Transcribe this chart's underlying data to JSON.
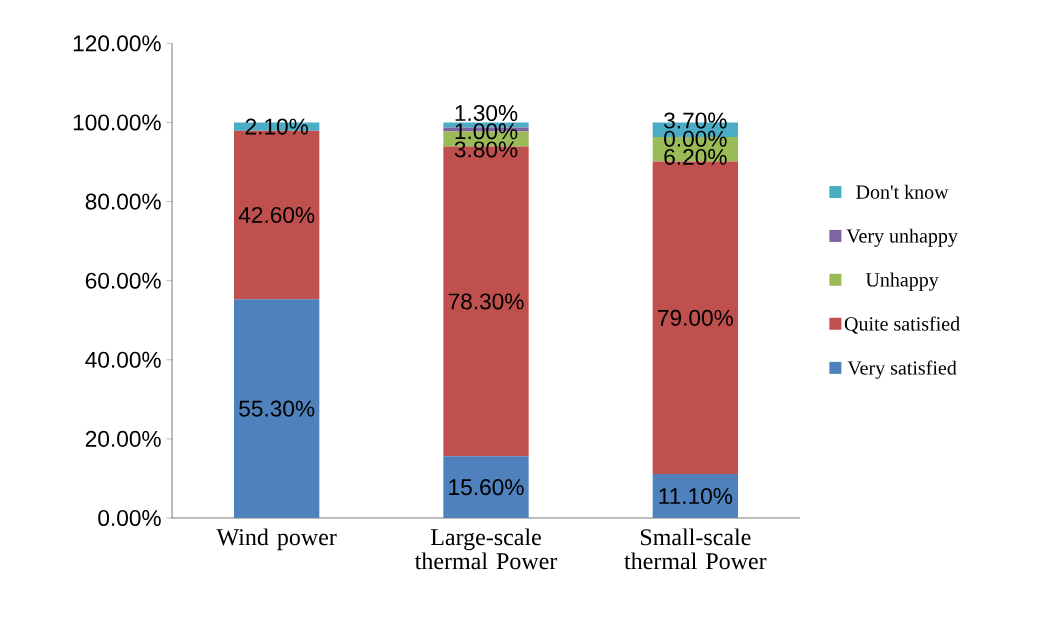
{
  "chart_data": {
    "type": "bar",
    "stacked": true,
    "categories": [
      "Wind power",
      "Large-scale thermal Power",
      "Small-scale thermal Power"
    ],
    "series": [
      {
        "name": "Very satisfied",
        "color": "#4f81bd",
        "values": [
          55.3,
          15.6,
          11.1
        ],
        "value_labels": [
          "55.30%",
          "15.60%",
          "11.10%"
        ]
      },
      {
        "name": "Quite satisfied",
        "color": "#c0504d",
        "values": [
          42.6,
          78.3,
          79.0
        ],
        "value_labels": [
          "42.60%",
          "78.30%",
          "79.00%"
        ]
      },
      {
        "name": "Unhappy",
        "color": "#9bbb59",
        "values": [
          0,
          3.8,
          6.2
        ],
        "value_labels": [
          null,
          "3.80%",
          "6.20%"
        ]
      },
      {
        "name": "Very unhappy",
        "color": "#8064a2",
        "values": [
          0,
          1.0,
          0.0
        ],
        "value_labels": [
          null,
          "1.00%",
          "0.00%"
        ]
      },
      {
        "name": "Don't know",
        "color": "#4bacc6",
        "values": [
          2.1,
          1.3,
          3.7
        ],
        "value_labels": [
          "2.10%",
          "1.30%",
          "3.70%"
        ]
      }
    ],
    "ylim": [
      0,
      120
    ],
    "yticks": [
      {
        "value": 0,
        "label": "0.00%"
      },
      {
        "value": 20,
        "label": "20.00%"
      },
      {
        "value": 40,
        "label": "40.00%"
      },
      {
        "value": 60,
        "label": "60.00%"
      },
      {
        "value": 80,
        "label": "80.00%"
      },
      {
        "value": 100,
        "label": "100.00%"
      },
      {
        "value": 120,
        "label": "120.00%"
      }
    ],
    "grid": false,
    "legend": "right"
  }
}
